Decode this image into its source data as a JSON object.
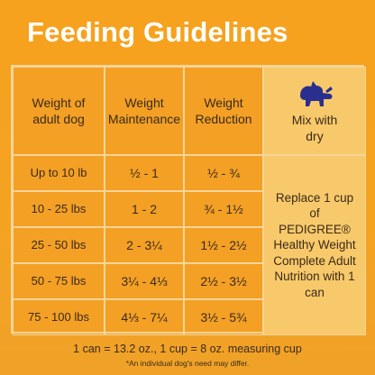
{
  "header": {
    "title": "Feeding Guidelines"
  },
  "table": {
    "columns": [
      "Weight of adult dog",
      "Weight Maintenance",
      "Weight Reduction",
      "Mix with dry"
    ],
    "rows": [
      [
        "Up to 10 lb",
        "½ - 1",
        "½ - ¾"
      ],
      [
        "10 - 25 lbs",
        "1 - 2",
        "¾ - 1½"
      ],
      [
        "25 - 50 lbs",
        "2 - 3¼",
        "1½ - 2½"
      ],
      [
        "50 - 75 lbs",
        "3¼ - 4⅓",
        "2½ - 3½"
      ],
      [
        "75 - 100 lbs",
        "4⅓ - 7¼",
        "3½ - 5¾"
      ]
    ],
    "mix_note": "Replace 1 cup of PEDIGREE® Healthy Weight Complete Adult Nutrition with 1 can"
  },
  "footer": {
    "note": "1 can = 13.2 oz., 1 cup = 8 oz. measuring cup",
    "disclaimer": "*An individual dog's need may differ."
  }
}
